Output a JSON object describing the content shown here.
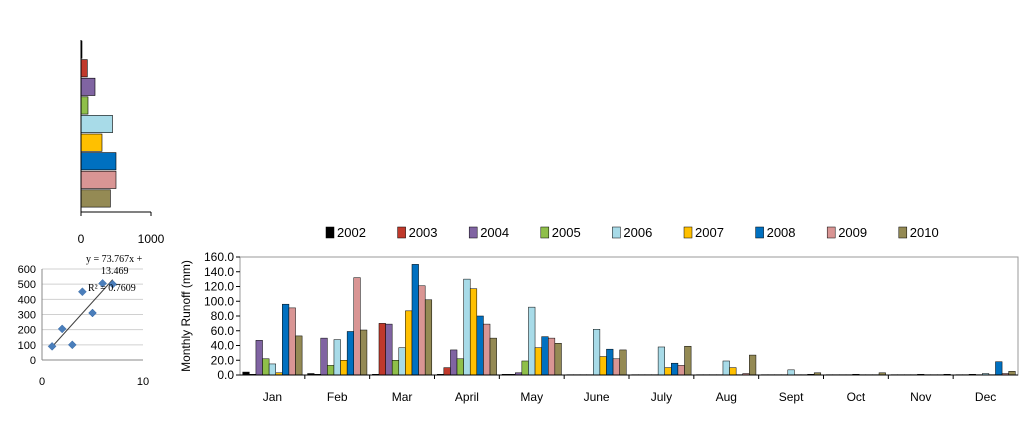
{
  "chart_data": [
    {
      "type": "bar",
      "orientation": "horizontal",
      "values": [
        0,
        90,
        200,
        100,
        450,
        300,
        500,
        500,
        420
      ],
      "colors": [
        "#000000",
        "#c0392b",
        "#8064a2",
        "#8fbf4a",
        "#a8dbe8",
        "#ffc000",
        "#0070c0",
        "#d99594",
        "#948a54"
      ],
      "xlim": [
        0,
        1000
      ],
      "xticks": [
        "0",
        "1000"
      ]
    },
    {
      "type": "scatter",
      "points": [
        [
          1,
          90
        ],
        [
          2,
          205
        ],
        [
          3,
          100
        ],
        [
          4,
          450
        ],
        [
          5,
          310
        ],
        [
          6,
          505
        ],
        [
          7,
          500
        ]
      ],
      "xlim": [
        0,
        10
      ],
      "ylim": [
        0,
        600
      ],
      "xticks": [
        "0",
        "10"
      ],
      "yticks": [
        "0",
        "100",
        "200",
        "300",
        "400",
        "500",
        "600"
      ],
      "trendline": {
        "slope": 73.767,
        "intercept": 13.469
      },
      "equation_line1": "y = 73.767x +",
      "equation_line2": "13.469",
      "r2_label": "R² = 0.7609"
    },
    {
      "type": "bar",
      "categories": [
        "Jan",
        "Feb",
        "Mar",
        "April",
        "May",
        "June",
        "July",
        "Aug",
        "Sept",
        "Oct",
        "Nov",
        "Dec"
      ],
      "ylabel": "Monthly  Runoff (mm)",
      "ylim": [
        0,
        160
      ],
      "yticks": [
        "0.0",
        "20.0",
        "40.0",
        "60.0",
        "80.0",
        "100.0",
        "120.0",
        "140.0",
        "160.0"
      ],
      "legend_position": "top",
      "series": [
        {
          "name": "2002",
          "color": "#000000",
          "values": [
            4,
            2,
            1,
            1,
            1,
            0.5,
            0.5,
            0.5,
            0.5,
            0.5,
            0.5,
            0.5
          ]
        },
        {
          "name": "2003",
          "color": "#c0392b",
          "values": [
            1,
            1,
            70,
            10,
            1,
            0.5,
            0.5,
            0.5,
            0.5,
            0.5,
            0.5,
            0.5
          ]
        },
        {
          "name": "2004",
          "color": "#8064a2",
          "values": [
            47,
            50,
            69,
            34,
            3,
            0.5,
            0.5,
            0.5,
            0.5,
            0.5,
            0.5,
            1
          ]
        },
        {
          "name": "2005",
          "color": "#8fbf4a",
          "values": [
            22,
            13,
            20,
            22,
            19,
            0.5,
            0.5,
            0.5,
            0.5,
            0.5,
            0.5,
            0.5
          ]
        },
        {
          "name": "2006",
          "color": "#a8dbe8",
          "values": [
            15,
            48,
            37,
            130,
            92,
            62,
            38,
            19,
            7,
            1,
            1,
            2
          ]
        },
        {
          "name": "2007",
          "color": "#ffc000",
          "values": [
            3,
            20,
            87,
            117,
            37,
            25,
            10,
            10,
            0.5,
            0.5,
            0.5,
            0.5
          ]
        },
        {
          "name": "2008",
          "color": "#0070c0",
          "values": [
            96,
            59,
            150,
            80,
            52,
            35,
            16,
            0.5,
            0.5,
            0.5,
            0.5,
            18
          ]
        },
        {
          "name": "2009",
          "color": "#d99594",
          "values": [
            91,
            132,
            121,
            69,
            50,
            22,
            13,
            2,
            1,
            0.5,
            0.5,
            2
          ]
        },
        {
          "name": "2010",
          "color": "#948a54",
          "values": [
            53,
            61,
            102,
            50,
            43,
            34,
            39,
            27,
            3,
            3,
            1,
            5
          ]
        }
      ]
    }
  ]
}
